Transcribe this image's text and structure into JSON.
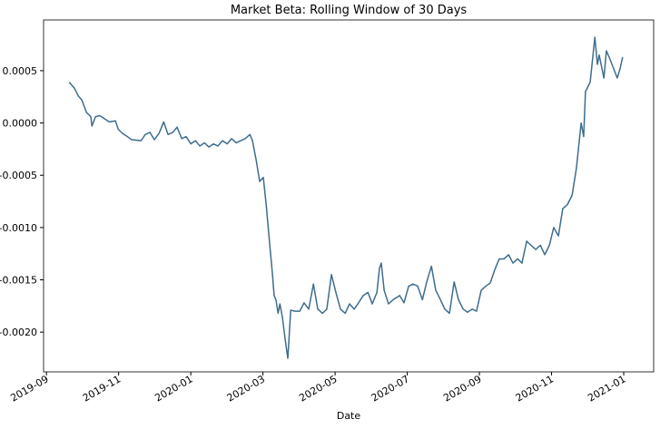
{
  "chart_data": {
    "type": "line",
    "title": "Market Beta: Rolling Window of 30 Days",
    "xlabel": "Date",
    "color": "#3e6d8e",
    "x": [
      0.63,
      0.78,
      0.88,
      0.98,
      1.11,
      1.23,
      1.26,
      1.36,
      1.48,
      1.61,
      1.74,
      1.91,
      1.99,
      2.11,
      2.24,
      2.36,
      2.62,
      2.74,
      2.87,
      2.99,
      3.12,
      3.25,
      3.37,
      3.5,
      3.62,
      3.75,
      3.87,
      4.0,
      4.13,
      4.25,
      4.38,
      4.5,
      4.63,
      4.75,
      4.88,
      5.01,
      5.13,
      5.26,
      5.38,
      5.51,
      5.64,
      5.71,
      5.81,
      5.91,
      6.01,
      6.09,
      6.19,
      6.26,
      6.31,
      6.36,
      6.42,
      6.47,
      6.54,
      6.62,
      6.69,
      6.77,
      6.89,
      7.02,
      7.14,
      7.27,
      7.4,
      7.52,
      7.65,
      7.77,
      7.9,
      8.03,
      8.15,
      8.28,
      8.4,
      8.53,
      8.65,
      8.78,
      8.91,
      9.03,
      9.16,
      9.23,
      9.28,
      9.36,
      9.48,
      9.61,
      9.79,
      9.91,
      10.04,
      10.16,
      10.29,
      10.42,
      10.54,
      10.67,
      10.79,
      10.92,
      11.04,
      11.17,
      11.3,
      11.42,
      11.55,
      11.67,
      11.8,
      11.92,
      12.05,
      12.18,
      12.3,
      12.43,
      12.55,
      12.68,
      12.81,
      12.93,
      13.06,
      13.18,
      13.31,
      13.43,
      13.56,
      13.69,
      13.81,
      13.94,
      14.06,
      14.19,
      14.31,
      14.44,
      14.57,
      14.69,
      14.82,
      14.89,
      14.94,
      15.07,
      15.2,
      15.27,
      15.32,
      15.45,
      15.52,
      15.62,
      15.72,
      15.82,
      15.9,
      15.97
    ],
    "values": [
      0.00039,
      0.00033,
      0.00026,
      0.00022,
      0.0001,
      6e-05,
      -3e-05,
      6e-05,
      7e-05,
      4e-05,
      1e-05,
      2e-05,
      -6e-05,
      -0.0001,
      -0.00013,
      -0.00016,
      -0.00017,
      -0.00011,
      -9e-05,
      -0.00016,
      -0.0001,
      1e-05,
      -0.00011,
      -9e-05,
      -4e-05,
      -0.00015,
      -0.00013,
      -0.0002,
      -0.00017,
      -0.00022,
      -0.00019,
      -0.00023,
      -0.0002,
      -0.00022,
      -0.00017,
      -0.0002,
      -0.00015,
      -0.00019,
      -0.00017,
      -0.00015,
      -0.00011,
      -0.00017,
      -0.00035,
      -0.00056,
      -0.00052,
      -0.00078,
      -0.00117,
      -0.00143,
      -0.00165,
      -0.00169,
      -0.00182,
      -0.00173,
      -0.00186,
      -0.00208,
      -0.00225,
      -0.00179,
      -0.0018,
      -0.0018,
      -0.00172,
      -0.00178,
      -0.00154,
      -0.00178,
      -0.00182,
      -0.00178,
      -0.00145,
      -0.00163,
      -0.00178,
      -0.00182,
      -0.00173,
      -0.00178,
      -0.00172,
      -0.00165,
      -0.00162,
      -0.00173,
      -0.00162,
      -0.00139,
      -0.00134,
      -0.0016,
      -0.00173,
      -0.00169,
      -0.00165,
      -0.00172,
      -0.00156,
      -0.00154,
      -0.00156,
      -0.00169,
      -0.00152,
      -0.00137,
      -0.0016,
      -0.00169,
      -0.00178,
      -0.00182,
      -0.00152,
      -0.00169,
      -0.00178,
      -0.00181,
      -0.00178,
      -0.0018,
      -0.0016,
      -0.00156,
      -0.00153,
      -0.0014,
      -0.0013,
      -0.0013,
      -0.00126,
      -0.00134,
      -0.0013,
      -0.00134,
      -0.00113,
      -0.00117,
      -0.00121,
      -0.00117,
      -0.00126,
      -0.00117,
      -0.001,
      -0.00108,
      -0.00082,
      -0.00078,
      -0.00069,
      -0.00043,
      0,
      -0.00013,
      0.0003,
      0.00039,
      0.00082,
      0.00056,
      0.00065,
      0.00043,
      0.00069,
      0.00061,
      0.00052,
      0.00043,
      0.00052,
      0.00063
    ],
    "xlim": [
      -0.08,
      16.83
    ],
    "xticks": [
      {
        "value": 0,
        "label": "2019-09"
      },
      {
        "value": 2,
        "label": "2019-11"
      },
      {
        "value": 4,
        "label": "2020-01"
      },
      {
        "value": 6,
        "label": "2020-03"
      },
      {
        "value": 8,
        "label": "2020-05"
      },
      {
        "value": 10,
        "label": "2020-07"
      },
      {
        "value": 12,
        "label": "2020-09"
      },
      {
        "value": 14,
        "label": "2020-11"
      },
      {
        "value": 16,
        "label": "2021-01"
      }
    ],
    "ylim": [
      -0.00238,
      0.000985
    ],
    "yticks": [
      0.0005,
      {
        "value": 0,
        "label": "0.0000"
      },
      -0.0005,
      {
        "value": -0.001,
        "label": "-0.0010"
      },
      -0.0015,
      {
        "value": -0.002,
        "label": "-0.0020"
      }
    ]
  }
}
